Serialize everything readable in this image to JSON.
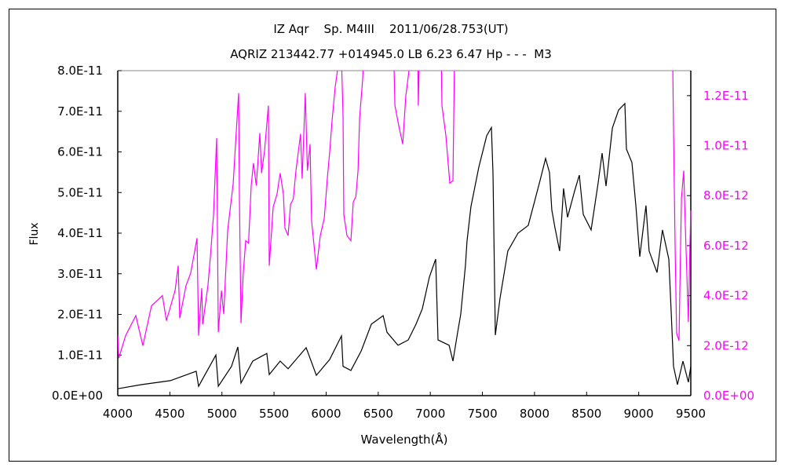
{
  "chart_data": {
    "type": "line",
    "title": "IZ Aqr    Sp. M4III    2011/06/28.753(UT)",
    "subtitle": "AQRIZ 213442.77 +014945.0 LB 6.23 6.47 Hp - - -  M3",
    "xlabel": "Wavelength(Å)",
    "ylabel": "Flux",
    "xlim": [
      4000,
      9500
    ],
    "ylim_left": [
      0,
      8e-11
    ],
    "ylim_right": [
      0,
      1.3e-11
    ],
    "grid": false,
    "x_ticks": [
      "4000",
      "4500",
      "5000",
      "5500",
      "6000",
      "6500",
      "7000",
      "7500",
      "8000",
      "8500",
      "9000",
      "9500"
    ],
    "y_ticks_left": [
      "0.0E+00",
      "1.0E-11",
      "2.0E-11",
      "3.0E-11",
      "4.0E-11",
      "5.0E-11",
      "6.0E-11",
      "7.0E-11",
      "8.0E-11"
    ],
    "y_ticks_right": [
      "0.0E+00",
      "2.0E-12",
      "4.0E-12",
      "6.0E-12",
      "8.0E-12",
      "1.0E-11",
      "1.2E-11"
    ],
    "colors": {
      "left_series": "#000000",
      "right_series": "#ff00ff",
      "right_axis_labels": "#ff00ff"
    },
    "series": [
      {
        "axis": "left",
        "color": "#000000",
        "unit": "1E-11",
        "points": [
          [
            4000,
            0.17
          ],
          [
            4226,
            0.27
          ],
          [
            4505,
            0.37
          ],
          [
            4753,
            0.6
          ],
          [
            4776,
            0.23
          ],
          [
            4942,
            1.0
          ],
          [
            4965,
            0.23
          ],
          [
            5092,
            0.72
          ],
          [
            5153,
            1.2
          ],
          [
            5183,
            0.31
          ],
          [
            5296,
            0.85
          ],
          [
            5431,
            1.04
          ],
          [
            5454,
            0.52
          ],
          [
            5559,
            0.85
          ],
          [
            5635,
            0.66
          ],
          [
            5808,
            1.18
          ],
          [
            5906,
            0.5
          ],
          [
            6034,
            0.89
          ],
          [
            6147,
            1.47
          ],
          [
            6162,
            0.72
          ],
          [
            6238,
            0.62
          ],
          [
            6336,
            1.1
          ],
          [
            6434,
            1.76
          ],
          [
            6547,
            1.97
          ],
          [
            6584,
            1.56
          ],
          [
            6690,
            1.24
          ],
          [
            6788,
            1.37
          ],
          [
            6863,
            1.76
          ],
          [
            6923,
            2.14
          ],
          [
            6991,
            2.92
          ],
          [
            7051,
            3.36
          ],
          [
            7074,
            1.37
          ],
          [
            7180,
            1.24
          ],
          [
            7217,
            0.85
          ],
          [
            7262,
            1.56
          ],
          [
            7292,
            2.0
          ],
          [
            7337,
            3.2
          ],
          [
            7352,
            3.8
          ],
          [
            7390,
            4.65
          ],
          [
            7465,
            5.62
          ],
          [
            7541,
            6.4
          ],
          [
            7586,
            6.6
          ],
          [
            7601,
            5.49
          ],
          [
            7624,
            1.49
          ],
          [
            7669,
            2.4
          ],
          [
            7744,
            3.56
          ],
          [
            7842,
            4.0
          ],
          [
            7940,
            4.19
          ],
          [
            7993,
            4.71
          ],
          [
            8053,
            5.29
          ],
          [
            8106,
            5.84
          ],
          [
            8144,
            5.49
          ],
          [
            8166,
            4.58
          ],
          [
            8196,
            4.14
          ],
          [
            8241,
            3.56
          ],
          [
            8279,
            5.1
          ],
          [
            8317,
            4.39
          ],
          [
            8385,
            5.04
          ],
          [
            8430,
            5.43
          ],
          [
            8468,
            4.46
          ],
          [
            8543,
            4.08
          ],
          [
            8611,
            5.24
          ],
          [
            8649,
            5.97
          ],
          [
            8686,
            5.16
          ],
          [
            8747,
            6.59
          ],
          [
            8807,
            7.03
          ],
          [
            8867,
            7.19
          ],
          [
            8882,
            6.07
          ],
          [
            8935,
            5.74
          ],
          [
            8973,
            4.66
          ],
          [
            9010,
            3.42
          ],
          [
            9070,
            4.68
          ],
          [
            9100,
            3.56
          ],
          [
            9176,
            3.03
          ],
          [
            9228,
            4.08
          ],
          [
            9289,
            3.36
          ],
          [
            9312,
            2.07
          ],
          [
            9334,
            0.72
          ],
          [
            9372,
            0.27
          ],
          [
            9425,
            0.85
          ],
          [
            9477,
            0.33
          ],
          [
            9500,
            0.72
          ]
        ]
      },
      {
        "axis": "right",
        "color": "#ff00ff",
        "unit": "1E-12",
        "points": [
          [
            4000,
            2.4
          ],
          [
            4010,
            1.5
          ],
          [
            4075,
            2.4
          ],
          [
            4173,
            3.2
          ],
          [
            4241,
            2.0
          ],
          [
            4324,
            3.6
          ],
          [
            4429,
            4.0
          ],
          [
            4467,
            3.0
          ],
          [
            4550,
            4.2
          ],
          [
            4580,
            5.2
          ],
          [
            4595,
            3.1
          ],
          [
            4655,
            4.4
          ],
          [
            4700,
            4.9
          ],
          [
            4761,
            6.3
          ],
          [
            4776,
            2.4
          ],
          [
            4806,
            4.3
          ],
          [
            4815,
            2.85
          ],
          [
            4866,
            4.4
          ],
          [
            4889,
            5.55
          ],
          [
            4919,
            7.24
          ],
          [
            4949,
            10.3
          ],
          [
            4965,
            2.54
          ],
          [
            4995,
            4.2
          ],
          [
            5017,
            3.26
          ],
          [
            5055,
            6.6
          ],
          [
            5108,
            8.5
          ],
          [
            5130,
            10.06
          ],
          [
            5160,
            12.1
          ],
          [
            5168,
            7.87
          ],
          [
            5183,
            2.9
          ],
          [
            5205,
            4.9
          ],
          [
            5228,
            6.2
          ],
          [
            5255,
            6.1
          ],
          [
            5281,
            8.4
          ],
          [
            5303,
            9.3
          ],
          [
            5330,
            8.4
          ],
          [
            5364,
            10.5
          ],
          [
            5380,
            8.9
          ],
          [
            5409,
            9.8
          ],
          [
            5446,
            11.6
          ],
          [
            5454,
            5.2
          ],
          [
            5492,
            7.55
          ],
          [
            5529,
            8.06
          ],
          [
            5559,
            8.9
          ],
          [
            5590,
            8.06
          ],
          [
            5605,
            6.7
          ],
          [
            5635,
            6.4
          ],
          [
            5658,
            7.65
          ],
          [
            5685,
            7.87
          ],
          [
            5710,
            9.0
          ],
          [
            5755,
            10.47
          ],
          [
            5770,
            8.68
          ],
          [
            5800,
            12.1
          ],
          [
            5820,
            9.0
          ],
          [
            5846,
            10.06
          ],
          [
            5860,
            7.0
          ],
          [
            5884,
            6.0
          ],
          [
            5906,
            5.05
          ],
          [
            5944,
            6.4
          ],
          [
            5982,
            7.1
          ],
          [
            6012,
            8.7
          ],
          [
            6034,
            9.75
          ],
          [
            6057,
            11.0
          ],
          [
            6087,
            12.35
          ],
          [
            6125,
            13.5
          ],
          [
            6147,
            13.5
          ],
          [
            6162,
            11.2
          ],
          [
            6170,
            7.24
          ],
          [
            6200,
            6.4
          ],
          [
            6238,
            6.2
          ],
          [
            6260,
            7.74
          ],
          [
            6285,
            7.96
          ],
          [
            6306,
            9.0
          ],
          [
            6321,
            11.1
          ],
          [
            6351,
            12.67
          ],
          [
            6360,
            13.5
          ],
          [
            6650,
            13.5
          ],
          [
            6660,
            11.6
          ],
          [
            6697,
            10.8
          ],
          [
            6735,
            10.06
          ],
          [
            6765,
            12.0
          ],
          [
            6810,
            13.5
          ],
          [
            6880,
            13.5
          ],
          [
            6885,
            11.6
          ],
          [
            6895,
            13.5
          ],
          [
            7105,
            13.5
          ],
          [
            7112,
            11.6
          ],
          [
            7149,
            10.4
          ],
          [
            7187,
            8.5
          ],
          [
            7217,
            8.6
          ],
          [
            7232,
            13.5
          ],
          [
            9326,
            13.5
          ],
          [
            9334,
            10.6
          ],
          [
            9349,
            6.0
          ],
          [
            9364,
            2.5
          ],
          [
            9387,
            2.2
          ],
          [
            9402,
            6.0
          ],
          [
            9410,
            7.9
          ],
          [
            9432,
            9.0
          ],
          [
            9447,
            6.8
          ],
          [
            9477,
            2.95
          ],
          [
            9492,
            6.0
          ],
          [
            9500,
            7.4
          ]
        ]
      }
    ]
  }
}
